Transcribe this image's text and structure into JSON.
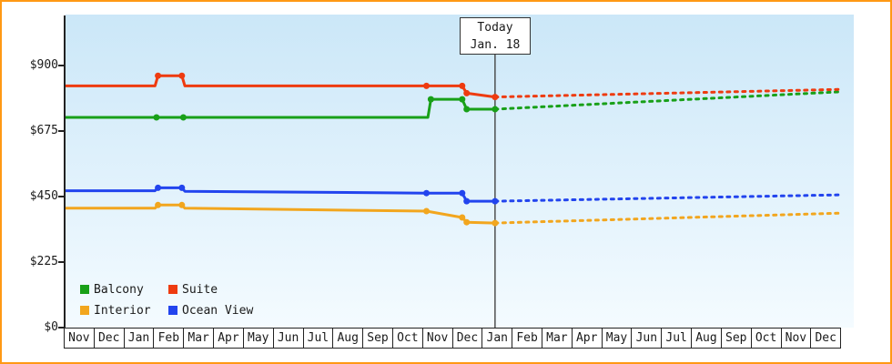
{
  "frame": {
    "border_color": "#ff9914",
    "plot_bg_top": "#cbe7f8",
    "plot_bg_bottom": "#f4fbff"
  },
  "legend": {
    "items": [
      {
        "label": "Balcony",
        "color": "#18a018"
      },
      {
        "label": "Suite",
        "color": "#ee3b10"
      },
      {
        "label": "Interior",
        "color": "#f2a61e"
      },
      {
        "label": "Ocean View",
        "color": "#2244ee"
      }
    ]
  },
  "chart_data": {
    "type": "line",
    "x_unit": "month-index",
    "x_range": [
      0,
      26
    ],
    "x_months": [
      "Nov",
      "Dec",
      "Jan",
      "Feb",
      "Mar",
      "Apr",
      "May",
      "Jun",
      "Jul",
      "Aug",
      "Sep",
      "Oct",
      "Nov",
      "Dec",
      "Jan",
      "Feb",
      "Mar",
      "Apr",
      "May",
      "Jun",
      "Jul",
      "Aug",
      "Sep",
      "Oct",
      "Nov",
      "Dec"
    ],
    "ylim": [
      0,
      900
    ],
    "yticks": [
      {
        "value": 0,
        "label": "$0"
      },
      {
        "value": 225,
        "label": "$225"
      },
      {
        "value": 450,
        "label": "$450"
      },
      {
        "value": 675,
        "label": "$675"
      },
      {
        "value": 900,
        "label": "$900"
      }
    ],
    "today": {
      "x": 14.4,
      "line1": "Today",
      "line2": "Jan. 18"
    },
    "solid_segment_meaning": "price history",
    "dashed_segment_meaning": "price forecast",
    "series": [
      {
        "name": "Interior",
        "color": "#f2a61e",
        "history": [
          [
            0,
            410
          ],
          [
            3.0,
            410
          ],
          [
            3.1,
            421
          ],
          [
            3.9,
            421
          ],
          [
            4.0,
            410
          ],
          [
            12.1,
            400
          ],
          [
            13.3,
            378
          ],
          [
            13.45,
            362
          ],
          [
            14.4,
            359
          ]
        ],
        "markers": [
          [
            3.1,
            421
          ],
          [
            3.9,
            421
          ],
          [
            12.1,
            400
          ],
          [
            13.3,
            378
          ],
          [
            13.45,
            362
          ],
          [
            14.4,
            359
          ]
        ],
        "forecast": [
          [
            14.4,
            359
          ],
          [
            26,
            393
          ]
        ]
      },
      {
        "name": "Ocean View",
        "color": "#2244ee",
        "history": [
          [
            0,
            470
          ],
          [
            3.0,
            470
          ],
          [
            3.1,
            480
          ],
          [
            3.9,
            480
          ],
          [
            4.0,
            468
          ],
          [
            12.1,
            462
          ],
          [
            13.3,
            462
          ],
          [
            13.45,
            434
          ],
          [
            14.4,
            434
          ]
        ],
        "markers": [
          [
            3.1,
            480
          ],
          [
            3.9,
            480
          ],
          [
            12.1,
            462
          ],
          [
            13.3,
            462
          ],
          [
            13.45,
            434
          ],
          [
            14.4,
            434
          ]
        ],
        "forecast": [
          [
            14.4,
            434
          ],
          [
            26,
            456
          ]
        ]
      },
      {
        "name": "Balcony",
        "color": "#18a018",
        "history": [
          [
            0,
            722
          ],
          [
            3.05,
            722
          ],
          [
            3.95,
            722
          ],
          [
            12.15,
            722
          ],
          [
            12.25,
            784
          ],
          [
            13.3,
            784
          ],
          [
            13.45,
            750
          ],
          [
            14.4,
            750
          ]
        ],
        "markers": [
          [
            3.05,
            722
          ],
          [
            3.95,
            722
          ],
          [
            12.25,
            784
          ],
          [
            13.3,
            784
          ],
          [
            13.45,
            750
          ],
          [
            14.4,
            750
          ]
        ],
        "forecast": [
          [
            14.4,
            750
          ],
          [
            26,
            810
          ]
        ]
      },
      {
        "name": "Suite",
        "color": "#ee3b10",
        "history": [
          [
            0,
            830
          ],
          [
            3.0,
            830
          ],
          [
            3.1,
            865
          ],
          [
            3.9,
            865
          ],
          [
            4.0,
            830
          ],
          [
            12.1,
            830
          ],
          [
            13.3,
            830
          ],
          [
            13.45,
            805
          ],
          [
            14.4,
            792
          ]
        ],
        "markers": [
          [
            3.1,
            865
          ],
          [
            3.9,
            865
          ],
          [
            12.1,
            830
          ],
          [
            13.3,
            830
          ],
          [
            13.45,
            805
          ],
          [
            14.4,
            792
          ]
        ],
        "forecast": [
          [
            14.4,
            792
          ],
          [
            26,
            818
          ]
        ]
      }
    ]
  }
}
